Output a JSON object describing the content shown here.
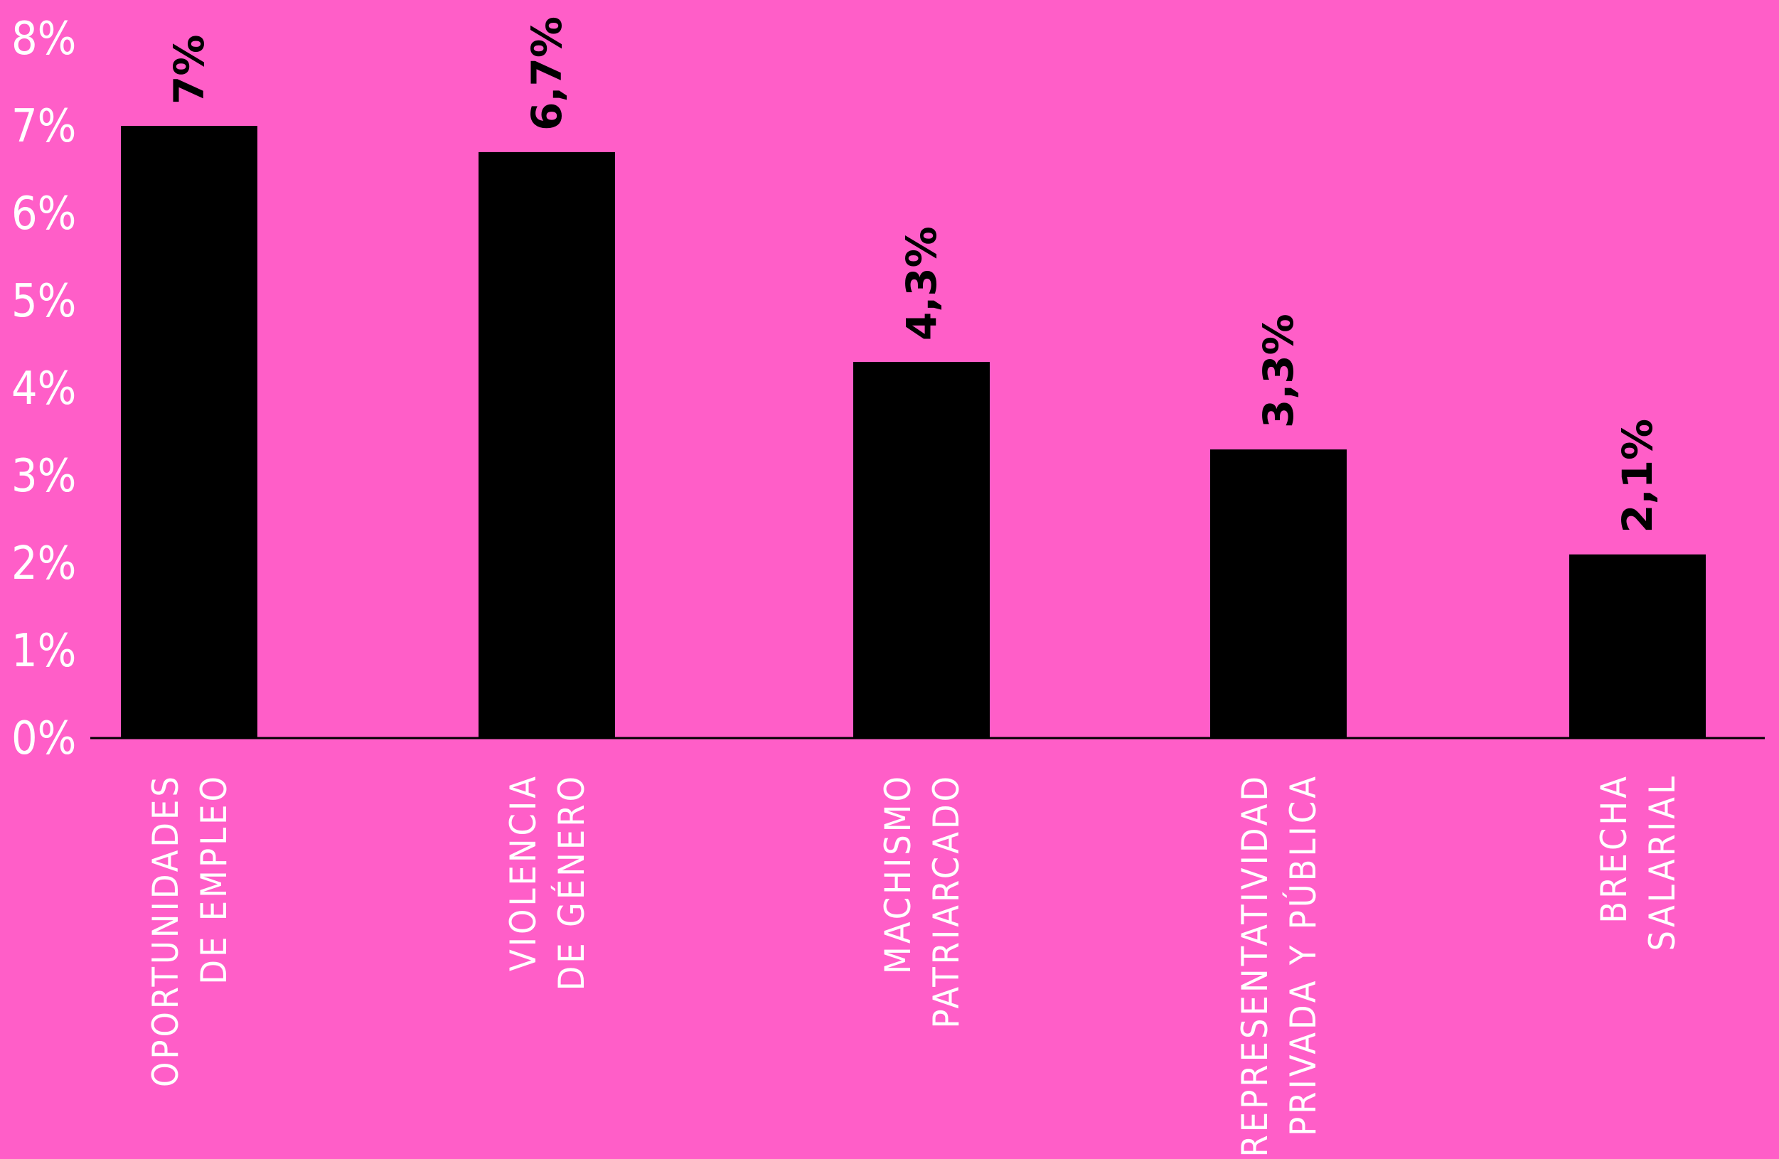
{
  "colors": {
    "background": "#ff5ec8",
    "bar": "#000000",
    "axis": "#000000",
    "tick_text": "#ffffff",
    "category_text": "#ffffff",
    "value_text": "#000000"
  },
  "chart_data": {
    "type": "bar",
    "title": "",
    "xlabel": "",
    "ylabel": "",
    "ylim": [
      0,
      8
    ],
    "grid": false,
    "yticks": [
      "0%",
      "1%",
      "2%",
      "3%",
      "4%",
      "5%",
      "6%",
      "7%",
      "8%"
    ],
    "categories": [
      [
        "OPORTUNIDADES",
        "DE EMPLEO"
      ],
      [
        "VIOLENCIA",
        "DE GÉNERO"
      ],
      [
        "MACHISMO",
        "PATRIARCADO"
      ],
      [
        "REPRESENTATIVIDAD",
        "PRIVADA Y PÚBLICA"
      ],
      [
        "BRECHA",
        "SALARIAL"
      ]
    ],
    "values": [
      7,
      6.7,
      4.3,
      3.3,
      2.1
    ],
    "value_labels": [
      "7%",
      "6,7%",
      "4,3%",
      "3,3%",
      "2,1%"
    ]
  }
}
